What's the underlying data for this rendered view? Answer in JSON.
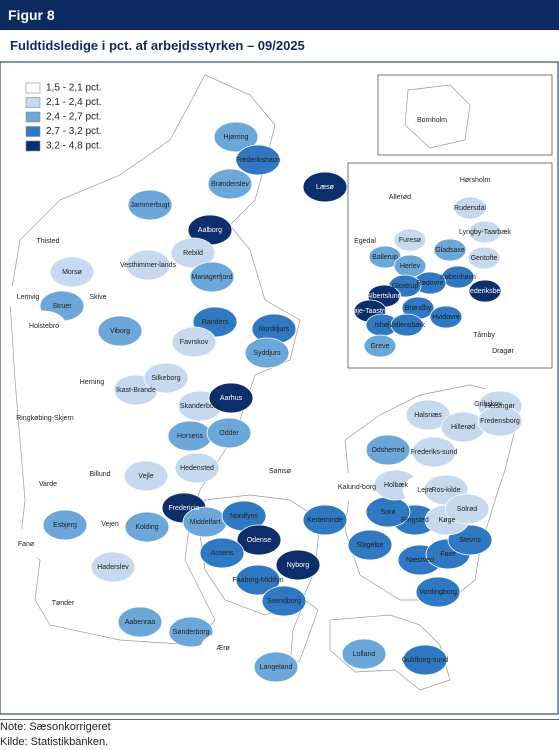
{
  "header": {
    "figure": "Figur 8",
    "title": "Fuldtidsledige i pct. af arbejdsstyrken – 09/2025"
  },
  "legend": [
    {
      "label": "1,5 - 2,1 pct.",
      "color": "#ffffff"
    },
    {
      "label": "2,1 - 2,4 pct.",
      "color": "#c6d9ee"
    },
    {
      "label": "2,4 - 2,7 pct.",
      "color": "#6ca7d9"
    },
    {
      "label": "2,7 - 3,2 pct.",
      "color": "#2f78c2"
    },
    {
      "label": "3,2 - 4,8 pct.",
      "color": "#0c2f6c"
    }
  ],
  "labels": [
    {
      "text": "Hjørring",
      "color": "#6ca7d9"
    },
    {
      "text": "Frederikshavn",
      "color": "#2f78c2"
    },
    {
      "text": "Brønderslev",
      "color": "#6ca7d9"
    },
    {
      "text": "Læsø",
      "color": "#0c2f6c"
    },
    {
      "text": "Jammerbugt",
      "color": "#6ca7d9"
    },
    {
      "text": "Aalborg",
      "color": "#0c2f6c"
    },
    {
      "text": "Thisted",
      "color": "#ffffff"
    },
    {
      "text": "Vesthimmer-lands",
      "color": "#c6d9ee"
    },
    {
      "text": "Rebild",
      "color": "#c6d9ee"
    },
    {
      "text": "Mariagerfjord",
      "color": "#6ca7d9"
    },
    {
      "text": "Morsø",
      "color": "#c6d9ee"
    },
    {
      "text": "Skive",
      "color": "#ffffff"
    },
    {
      "text": "Lemvig",
      "color": "#ffffff"
    },
    {
      "text": "Struer",
      "color": "#6ca7d9"
    },
    {
      "text": "Holstebro",
      "color": "#ffffff"
    },
    {
      "text": "Viborg",
      "color": "#6ca7d9"
    },
    {
      "text": "Randers",
      "color": "#2f78c2"
    },
    {
      "text": "Norddjurs",
      "color": "#2f78c2"
    },
    {
      "text": "Syddjurs",
      "color": "#6ca7d9"
    },
    {
      "text": "Favrskov",
      "color": "#c6d9ee"
    },
    {
      "text": "Herning",
      "color": "#ffffff"
    },
    {
      "text": "Ikast-Brande",
      "color": "#c6d9ee"
    },
    {
      "text": "Silkeborg",
      "color": "#c6d9ee"
    },
    {
      "text": "Skanderborg",
      "color": "#c6d9ee"
    },
    {
      "text": "Aarhus",
      "color": "#0c2f6c"
    },
    {
      "text": "Ringkøbing-Skjern",
      "color": "#ffffff"
    },
    {
      "text": "Horsens",
      "color": "#6ca7d9"
    },
    {
      "text": "Odder",
      "color": "#6ca7d9"
    },
    {
      "text": "Hedensted",
      "color": "#c6d9ee"
    },
    {
      "text": "Samsø",
      "color": "#ffffff"
    },
    {
      "text": "Billund",
      "color": "#ffffff"
    },
    {
      "text": "Vejle",
      "color": "#c6d9ee"
    },
    {
      "text": "Varde",
      "color": "#ffffff"
    },
    {
      "text": "Fredericia",
      "color": "#0c2f6c"
    },
    {
      "text": "Middelfart",
      "color": "#6ca7d9"
    },
    {
      "text": "Nordfyns",
      "color": "#2f78c2"
    },
    {
      "text": "Kerteminde",
      "color": "#2f78c2"
    },
    {
      "text": "Esbjerg",
      "color": "#6ca7d9"
    },
    {
      "text": "Vejen",
      "color": "#ffffff"
    },
    {
      "text": "Kolding",
      "color": "#6ca7d9"
    },
    {
      "text": "Odense",
      "color": "#0c2f6c"
    },
    {
      "text": "Assens",
      "color": "#2f78c2"
    },
    {
      "text": "Nyborg",
      "color": "#0c2f6c"
    },
    {
      "text": "Faaborg-Midtfyn",
      "color": "#2f78c2"
    },
    {
      "text": "Fanø",
      "color": "#ffffff"
    },
    {
      "text": "Haderslev",
      "color": "#c6d9ee"
    },
    {
      "text": "Svendborg",
      "color": "#2f78c2"
    },
    {
      "text": "Tønder",
      "color": "#ffffff"
    },
    {
      "text": "Aabenraa",
      "color": "#6ca7d9"
    },
    {
      "text": "Sønderborg",
      "color": "#6ca7d9"
    },
    {
      "text": "Ærø",
      "color": "#ffffff"
    },
    {
      "text": "Langeland",
      "color": "#6ca7d9"
    },
    {
      "text": "Lolland",
      "color": "#6ca7d9"
    },
    {
      "text": "Guldborg-sund",
      "color": "#2f78c2"
    },
    {
      "text": "Vordingborg",
      "color": "#2f78c2"
    },
    {
      "text": "Næstved",
      "color": "#2f78c2"
    },
    {
      "text": "Faxe",
      "color": "#2f78c2"
    },
    {
      "text": "Stevns",
      "color": "#2f78c2"
    },
    {
      "text": "Slagelse",
      "color": "#2f78c2"
    },
    {
      "text": "Ringsted",
      "color": "#2f78c2"
    },
    {
      "text": "Sorø",
      "color": "#2f78c2"
    },
    {
      "text": "Køge",
      "color": "#c6d9ee"
    },
    {
      "text": "Kalund-borg",
      "color": "#ffffff"
    },
    {
      "text": "Holbæk",
      "color": "#c6d9ee"
    },
    {
      "text": "Odsherred",
      "color": "#6ca7d9"
    },
    {
      "text": "Lejre",
      "color": "#ffffff"
    },
    {
      "text": "Ros-kilde",
      "color": "#c6d9ee"
    },
    {
      "text": "Solrød",
      "color": "#c6d9ee"
    },
    {
      "text": "Gribskov",
      "color": "#ffffff"
    },
    {
      "text": "Helsingør",
      "color": "#c6d9ee"
    },
    {
      "text": "Halsnæs",
      "color": "#c6d9ee"
    },
    {
      "text": "Hillerød",
      "color": "#c6d9ee"
    },
    {
      "text": "Fredensborg",
      "color": "#c6d9ee"
    },
    {
      "text": "Frederiks-sund",
      "color": "#c6d9ee"
    },
    {
      "text": "Bornholm",
      "color": "#ffffff"
    },
    {
      "text": "Hørsholm",
      "color": "#ffffff"
    },
    {
      "text": "Allerød",
      "color": "#ffffff"
    },
    {
      "text": "Rudersdal",
      "color": "#c6d9ee"
    },
    {
      "text": "Egedal",
      "color": "#ffffff"
    },
    {
      "text": "Furesø",
      "color": "#c6d9ee"
    },
    {
      "text": "Lyngby-Taarbæk",
      "color": "#c6d9ee"
    },
    {
      "text": "Gladsaxe",
      "color": "#6ca7d9"
    },
    {
      "text": "Gentofte",
      "color": "#c6d9ee"
    },
    {
      "text": "Ballerup",
      "color": "#6ca7d9"
    },
    {
      "text": "Herlev",
      "color": "#6ca7d9"
    },
    {
      "text": "København",
      "color": "#2f78c2"
    },
    {
      "text": "Rødovre",
      "color": "#2f78c2"
    },
    {
      "text": "Glostrup",
      "color": "#2f78c2"
    },
    {
      "text": "Frederiksberg",
      "color": "#0c2f6c"
    },
    {
      "text": "Albertslund",
      "color": "#0c2f6c"
    },
    {
      "text": "Høje-Taastrup",
      "color": "#0c2f6c"
    },
    {
      "text": "Brøndby",
      "color": "#2f78c2"
    },
    {
      "text": "Hvidovre",
      "color": "#2f78c2"
    },
    {
      "text": "Ishøj",
      "color": "#2f78c2"
    },
    {
      "text": "Vallensbæk",
      "color": "#2f78c2"
    },
    {
      "text": "Tårnby",
      "color": "#ffffff"
    },
    {
      "text": "Greve",
      "color": "#6ca7d9"
    },
    {
      "text": "Dragør",
      "color": "#ffffff"
    }
  ],
  "notes": [
    "Note: Sæsonkorrigeret",
    "Kilde: Statistikbanken."
  ]
}
